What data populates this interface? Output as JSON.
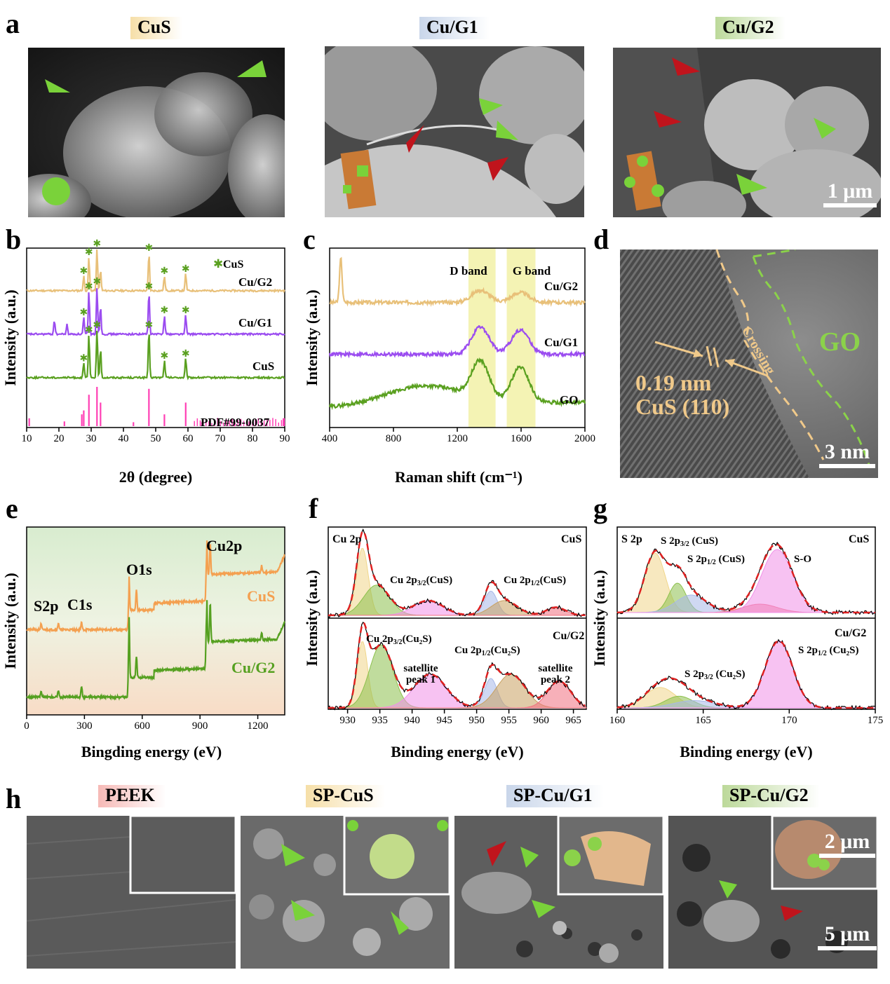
{
  "panel_a": {
    "label": "a",
    "titles": [
      "CuS",
      "Cu/G1",
      "Cu/G2"
    ],
    "title_colors": [
      "#f6dfa8",
      "#c9d6ea",
      "#bcd99a"
    ],
    "scale_bar": "1 μm"
  },
  "panel_h": {
    "label": "h",
    "titles": [
      "PEEK",
      "SP-CuS",
      "SP-Cu/G1",
      "SP-Cu/G2"
    ],
    "title_colors": [
      "#f6b9b6",
      "#f6dfa8",
      "#c9d6ea",
      "#bcd99a"
    ],
    "inset_scale_bar": "2 μm",
    "scale_bar": "5 μm"
  },
  "panel_d": {
    "label": "d",
    "spacing": "0.19 nm",
    "plane": "CuS (110)",
    "region_label": "GO",
    "interface_label": "Crossing",
    "scale_bar": "3 nm"
  },
  "colors": {
    "cu_g2": "#e8c079",
    "cu_g1": "#9b4cf0",
    "cus": "#5aa020",
    "pdf": "#ff3fb4",
    "band": "#f4f3b4",
    "arrow_green": "#77d13a",
    "arrow_red": "#c0141c",
    "xps_cus": "#f4a050",
    "xps_cug2": "#55a020"
  },
  "chart_data": [
    {
      "panel": "b",
      "type": "line",
      "xlabel": "2θ (degree)",
      "ylabel": "Intensity (a.u.)",
      "xlim": [
        10,
        90
      ],
      "xticks": [
        10,
        20,
        30,
        40,
        50,
        60,
        70,
        80,
        90
      ],
      "legend": "CuS",
      "series": [
        {
          "name": "Cu/G2",
          "peaks": [
            [
              27.7,
              0.35
            ],
            [
              29.3,
              0.8
            ],
            [
              31.8,
              1.0
            ],
            [
              32.9,
              0.5
            ],
            [
              47.9,
              0.9
            ],
            [
              52.7,
              0.35
            ],
            [
              59.3,
              0.4
            ]
          ]
        },
        {
          "name": "Cu/G1",
          "peaks": [
            [
              18.6,
              0.3
            ],
            [
              22.5,
              0.2
            ],
            [
              27.7,
              0.35
            ],
            [
              29.3,
              0.9
            ],
            [
              31.8,
              1.0
            ],
            [
              32.9,
              0.6
            ],
            [
              47.9,
              0.9
            ],
            [
              52.7,
              0.4
            ],
            [
              59.3,
              0.4
            ]
          ]
        },
        {
          "name": "CuS",
          "peaks": [
            [
              27.7,
              0.3
            ],
            [
              29.3,
              0.9
            ],
            [
              31.8,
              1.0
            ],
            [
              32.9,
              0.6
            ],
            [
              47.9,
              1.0
            ],
            [
              52.7,
              0.35
            ],
            [
              59.3,
              0.4
            ]
          ]
        },
        {
          "name": "PDF#99-0037",
          "sticks": [
            [
              10.8,
              0.2
            ],
            [
              21.7,
              0.12
            ],
            [
              27.1,
              0.3
            ],
            [
              27.7,
              0.4
            ],
            [
              29.3,
              0.8
            ],
            [
              31.8,
              1.0
            ],
            [
              32.9,
              0.6
            ],
            [
              43.1,
              0.1
            ],
            [
              47.9,
              0.95
            ],
            [
              52.7,
              0.3
            ],
            [
              59.3,
              0.6
            ],
            [
              64.3,
              0.1
            ],
            [
              74.3,
              0.12
            ],
            [
              79.0,
              0.12
            ],
            [
              89.6,
              0.2
            ]
          ]
        }
      ],
      "markers": [
        [
          27.7
        ],
        [
          29.3
        ],
        [
          31.8
        ],
        [
          47.9
        ],
        [
          52.7
        ],
        [
          59.3
        ]
      ]
    },
    {
      "panel": "c",
      "type": "line",
      "xlabel": "Raman shift (cm⁻¹)",
      "ylabel": "Intensity (a.u.)",
      "xlim": [
        400,
        2000
      ],
      "xticks": [
        400,
        800,
        1200,
        1600,
        2000
      ],
      "bands": [
        {
          "name": "D band",
          "range": [
            1270,
            1440
          ]
        },
        {
          "name": "G band",
          "range": [
            1510,
            1690
          ]
        }
      ],
      "series": [
        {
          "name": "Cu/G2",
          "peaks": [
            [
              470,
              0.9
            ],
            [
              1345,
              0.25
            ],
            [
              1595,
              0.2
            ]
          ]
        },
        {
          "name": "Cu/G1",
          "peaks": [
            [
              1345,
              0.55
            ],
            [
              1595,
              0.5
            ]
          ]
        },
        {
          "name": "GO",
          "peaks": [
            [
              1345,
              0.75
            ],
            [
              1595,
              0.72
            ]
          ]
        }
      ]
    },
    {
      "panel": "e",
      "type": "line",
      "xlabel": "Bingding energy (eV)",
      "ylabel": "Intensity (a.u.)",
      "xlim": [
        0,
        1340
      ],
      "xticks": [
        0,
        300,
        600,
        900,
        1200
      ],
      "annotations": [
        "S2p",
        "C1s",
        "O1s",
        "Cu2p"
      ],
      "series": [
        {
          "name": "CuS"
        },
        {
          "name": "Cu/G2"
        }
      ]
    },
    {
      "panel": "f",
      "type": "line",
      "xlabel": "Binding energy (eV)",
      "ylabel": "Intensity (a.u.)",
      "xlim": [
        927,
        967
      ],
      "xticks": [
        930,
        935,
        940,
        945,
        950,
        955,
        960,
        965
      ],
      "top": {
        "title": "Cu 2p",
        "sample": "CuS",
        "labels": [
          "Cu 2p3/2(CuS)",
          "Cu 2p1/2(CuS)"
        ]
      },
      "bottom": {
        "sample": "Cu/G2",
        "labels": [
          "Cu 2p3/2(Cu2S)",
          "Cu 2p1/2(Cu2S)",
          "satellite peak 1",
          "satellite peak 2"
        ]
      }
    },
    {
      "panel": "g",
      "type": "line",
      "xlabel": "Binding energy (eV)",
      "ylabel": "Intensity (a.u.)",
      "xlim": [
        160,
        175
      ],
      "xticks": [
        160,
        165,
        170,
        175
      ],
      "top": {
        "title": "S 2p",
        "sample": "CuS",
        "labels": [
          "S 2p3/2 (CuS)",
          "S 2p1/2 (CuS)",
          "S-O"
        ]
      },
      "bottom": {
        "sample": "Cu/G2",
        "labels": [
          "S 2p3/2 (Cu2S)",
          "S 2p1/2 (Cu2S)"
        ]
      }
    }
  ],
  "text": {
    "b_label": "b",
    "c_label": "c",
    "e_label": "e",
    "f_label": "f",
    "g_label": "g",
    "b_xlabel": "2θ (degree)",
    "b_ylabel": "Intensity (a.u.)",
    "b_legend": "CuS",
    "b_s1": "Cu/G2",
    "b_s2": "Cu/G1",
    "b_s3": "CuS",
    "b_s4": "PDF#99-0037",
    "c_xlabel": "Raman shift (cm⁻¹)",
    "c_ylabel": "Intensity (a.u.)",
    "c_dband": "D band",
    "c_gband": "G band",
    "c_s1": "Cu/G2",
    "c_s2": "Cu/G1",
    "c_s3": "GO",
    "e_xlabel": "Bingding energy (eV)",
    "e_ylabel": "Intensity (a.u.)",
    "e_s2p": "S2p",
    "e_c1s": "C1s",
    "e_o1s": "O1s",
    "e_cu2p": "Cu2p",
    "e_cus": "CuS",
    "e_cug2": "Cu/G2",
    "f_xlabel": "Binding energy (eV)",
    "f_ylabel": "Intensity (a.u.)",
    "f_title": "Cu 2p",
    "f_top_sample": "CuS",
    "f_bot_sample": "Cu/G2",
    "f_l1": "Cu 2p",
    "f_l1_sub": "3/2",
    "f_l1_end": "(CuS)",
    "f_l2": "Cu 2p",
    "f_l2_sub": "1/2",
    "f_l2_end": "(CuS)",
    "f_l3": "Cu 2p",
    "f_l3_sub": "3/2",
    "f_l3_end": "(Cu₂S)",
    "f_l4": "Cu 2p",
    "f_l4_sub": "1/2",
    "f_l4_end": "(Cu₂S)",
    "f_sat1a": "satellite",
    "f_sat1b": "peak 1",
    "f_sat2a": "satellite",
    "f_sat2b": "peak 2",
    "g_xlabel": "Binding energy (eV)",
    "g_ylabel": "Intensity (a.u.)",
    "g_title": "S 2p",
    "g_top_sample": "CuS",
    "g_bot_sample": "Cu/G2",
    "g_l1": "S 2p",
    "g_l1_sub": "3/2",
    "g_l1_end": " (CuS)",
    "g_l2": "S 2p",
    "g_l2_sub": "1/2",
    "g_l2_end": " (CuS)",
    "g_so": "S-O",
    "g_l3": "S 2p",
    "g_l3_sub": "3/2",
    "g_l3_end": " (Cu₂S)",
    "g_l4": "S 2p",
    "g_l4_sub": "1/2",
    "g_l4_end": " (Cu₂S)"
  }
}
